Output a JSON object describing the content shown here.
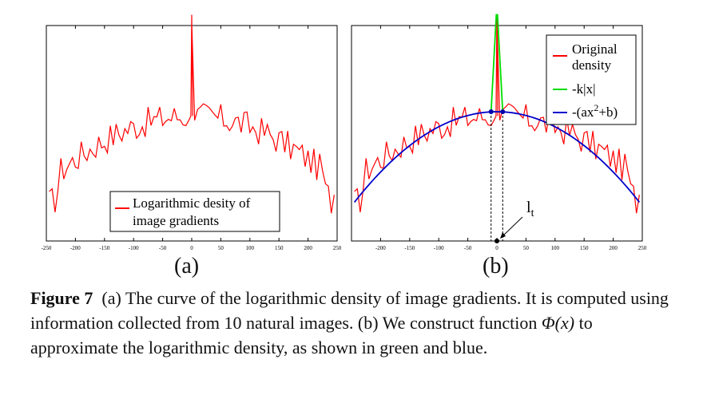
{
  "chart_data": [
    {
      "id": "a",
      "type": "line",
      "panel_label": "(a)",
      "xlim": [
        -250,
        250
      ],
      "x_ticks": [
        -250,
        -200,
        -150,
        -100,
        -50,
        0,
        50,
        100,
        150,
        200,
        250
      ],
      "grid": false,
      "legend": {
        "placement": "bottom-center",
        "entries": [
          "Logarithmic desity of",
          "image gradients"
        ]
      },
      "series": [
        {
          "name": "Logarithmic desity of image gradients",
          "color": "#ff0000",
          "x_range": [
            -245,
            245
          ],
          "peak": {
            "x": 0,
            "y_fraction": 1.0
          },
          "noisy_profile": "inverted parabola, top level near center ~0.58 of axis height, edges ~0.28"
        }
      ]
    },
    {
      "id": "b",
      "type": "line",
      "panel_label": "(b)",
      "xlim": [
        -250,
        250
      ],
      "x_ticks": [
        -250,
        -200,
        -150,
        -100,
        -50,
        0,
        50,
        100,
        150,
        200,
        250
      ],
      "grid": false,
      "legend": {
        "placement": "top-right",
        "entries": [
          {
            "label": "Original density",
            "lines": [
              "Original",
              "density"
            ],
            "color": "#ff0000"
          },
          {
            "label": "-k|x|",
            "color": "#00dd00"
          },
          {
            "label": "-(ax2+b)",
            "color": "#0000cc"
          }
        ]
      },
      "annotation": {
        "text": "l",
        "subscript": "t",
        "x": 0
      },
      "lt_points": [
        -10,
        10
      ],
      "series": [
        {
          "name": "Original density",
          "color": "#ff0000"
        },
        {
          "name": "-k|x|",
          "color": "#00dd00",
          "x_range": [
            -10,
            10
          ]
        },
        {
          "name": "-(ax2+b)",
          "color": "#0000cc",
          "x_range": [
            -245,
            245
          ]
        }
      ]
    }
  ],
  "labels": {
    "a": "(a)",
    "b": "(b)"
  },
  "caption": {
    "figure": "Figure 7",
    "text_1": "(a) The curve of the logarithmic density of image gradients. It is computed using information collected from 10 natural images. (b) We construct function ",
    "math": "Φ(x)",
    "text_2": " to approximate the logarithmic density, as shown in green and blue."
  }
}
